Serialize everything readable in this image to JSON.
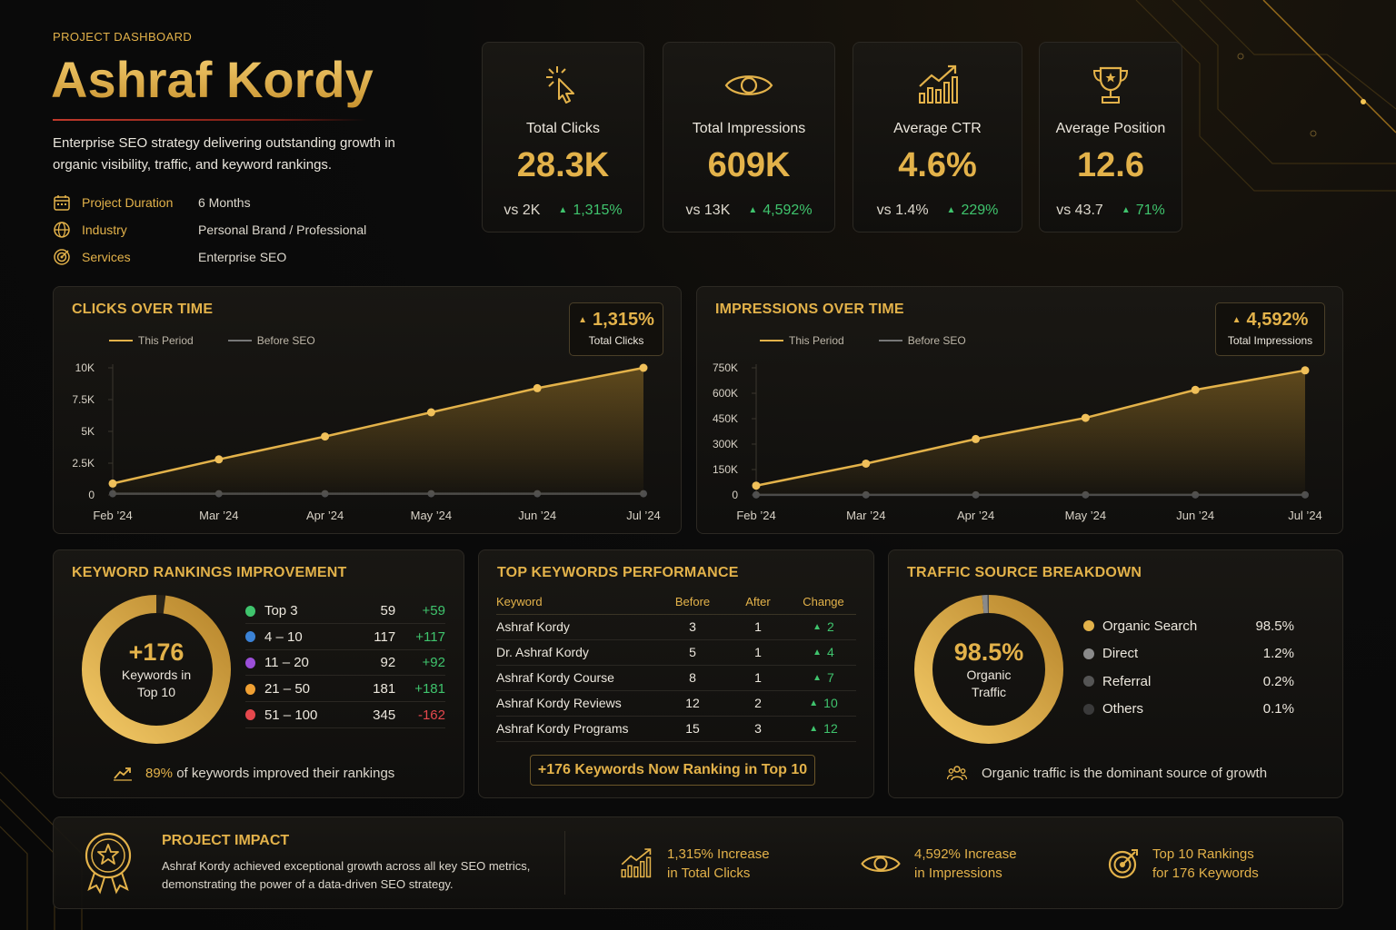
{
  "header": {
    "eyebrow": "PROJECT DASHBOARD",
    "title": "Ashraf Kordy",
    "description": "Enterprise SEO strategy delivering outstanding growth in organic visibility, traffic, and keyword rankings.",
    "meta": [
      {
        "icon": "calendar-icon",
        "label": "Project Duration",
        "value": "6 Months"
      },
      {
        "icon": "globe-icon",
        "label": "Industry",
        "value": "Personal Brand / Professional"
      },
      {
        "icon": "target-icon",
        "label": "Services",
        "value": "Enterprise SEO"
      }
    ]
  },
  "kpis": [
    {
      "icon": "cursor-click-icon",
      "label": "Total Clicks",
      "value": "28.3K",
      "vs": "vs 2K",
      "change": "1,315%"
    },
    {
      "icon": "eye-icon",
      "label": "Total Impressions",
      "value": "609K",
      "vs": "vs 13K",
      "change": "4,592%"
    },
    {
      "icon": "growth-chart-icon",
      "label": "Average CTR",
      "value": "4.6%",
      "vs": "vs 1.4%",
      "change": "229%"
    },
    {
      "icon": "trophy-icon",
      "label": "Average Position",
      "value": "12.6",
      "vs": "vs 43.7",
      "change": "71%"
    }
  ],
  "clicks_panel": {
    "title": "CLICKS OVER TIME",
    "badge_value": "1,315%",
    "badge_label": "Total Clicks"
  },
  "impressions_panel": {
    "title": "IMPRESSIONS OVER TIME",
    "badge_value": "4,592%",
    "badge_label": "Total Impressions"
  },
  "legend": {
    "this_period": "This Period",
    "before_seo": "Before SEO"
  },
  "colors": {
    "accent": "#e3b24a",
    "positive": "#3fc46d",
    "negative": "#e5484d",
    "before": "#555555"
  },
  "chart_data": [
    {
      "type": "line",
      "title": "CLICKS OVER TIME",
      "categories": [
        "Feb ’24",
        "Mar ’24",
        "Apr ’24",
        "May ’24",
        "Jun ’24",
        "Jul ’24"
      ],
      "yticks": [
        "0",
        "2.5K",
        "5K",
        "7.5K",
        "10K"
      ],
      "ylim": [
        0,
        10000
      ],
      "series": [
        {
          "name": "This Period",
          "values": [
            900,
            2800,
            4600,
            6500,
            8400,
            10000
          ]
        },
        {
          "name": "Before SEO",
          "values": [
            100,
            100,
            100,
            100,
            100,
            100
          ]
        }
      ],
      "legend_position": "top-left"
    },
    {
      "type": "line",
      "title": "IMPRESSIONS OVER TIME",
      "categories": [
        "Feb ’24",
        "Mar ’24",
        "Apr ’24",
        "May ’24",
        "Jun ’24",
        "Jul ’24"
      ],
      "yticks": [
        "0",
        "150K",
        "300K",
        "450K",
        "600K",
        "750K"
      ],
      "ylim": [
        0,
        750000
      ],
      "series": [
        {
          "name": "This Period",
          "values": [
            55000,
            185000,
            330000,
            455000,
            620000,
            735000
          ]
        },
        {
          "name": "Before SEO",
          "values": [
            1000,
            1000,
            1000,
            1000,
            1000,
            1000
          ]
        }
      ],
      "legend_position": "top-left"
    }
  ],
  "rankings": {
    "title": "KEYWORD RANKINGS IMPROVEMENT",
    "center_value": "+176",
    "center_label_1": "Keywords in",
    "center_label_2": "Top 10",
    "ring_fill": 0.98,
    "rows": [
      {
        "name": "Top 3",
        "color": "#3fc46d",
        "count": "59",
        "delta": "+59",
        "positive": true
      },
      {
        "name": "4 – 10",
        "color": "#3b82d6",
        "count": "117",
        "delta": "+117",
        "positive": true
      },
      {
        "name": "11 – 20",
        "color": "#9b4fd8",
        "count": "92",
        "delta": "+92",
        "positive": true
      },
      {
        "name": "21 – 50",
        "color": "#f0a033",
        "count": "181",
        "delta": "+181",
        "positive": true
      },
      {
        "name": "51 – 100",
        "color": "#e5484d",
        "count": "345",
        "delta": "-162",
        "positive": false
      }
    ],
    "footnote_value": "89%",
    "footnote_text": "of keywords improved their rankings"
  },
  "keywords": {
    "title": "TOP KEYWORDS PERFORMANCE",
    "headers": [
      "Keyword",
      "Before",
      "After",
      "Change"
    ],
    "rows": [
      [
        "Ashraf Kordy",
        "3",
        "1",
        "2"
      ],
      [
        "Dr. Ashraf Kordy",
        "5",
        "1",
        "4"
      ],
      [
        "Ashraf Kordy Course",
        "8",
        "1",
        "7"
      ],
      [
        "Ashraf Kordy Reviews",
        "12",
        "2",
        "10"
      ],
      [
        "Ashraf Kordy Programs",
        "15",
        "3",
        "12"
      ]
    ],
    "cta": "+176 Keywords Now Ranking in Top 10"
  },
  "traffic": {
    "title": "TRAFFIC SOURCE BREAKDOWN",
    "center_value": "98.5%",
    "center_label_1": "Organic",
    "center_label_2": "Traffic",
    "sources": [
      {
        "name": "Organic Search",
        "value": "98.5%",
        "share": 98.5,
        "color": "#e3b24a"
      },
      {
        "name": "Direct",
        "value": "1.2%",
        "share": 1.2,
        "color": "#8a8a8a"
      },
      {
        "name": "Referral",
        "value": "0.2%",
        "share": 0.2,
        "color": "#555555"
      },
      {
        "name": "Others",
        "value": "0.1%",
        "share": 0.1,
        "color": "#3a3a3a"
      }
    ],
    "footnote": "Organic traffic is the dominant source of growth"
  },
  "impact": {
    "title": "PROJECT IMPACT",
    "description": "Ashraf Kordy achieved exceptional growth across all key SEO metrics, demonstrating the power of a data-driven SEO strategy.",
    "items": [
      {
        "icon": "growth-chart-icon",
        "line1": "1,315% Increase",
        "line2": "in Total Clicks"
      },
      {
        "icon": "eye-icon",
        "line1": "4,592% Increase",
        "line2": "in Impressions"
      },
      {
        "icon": "target-icon",
        "line1": "Top 10 Rankings",
        "line2": "for 176 Keywords"
      }
    ]
  }
}
